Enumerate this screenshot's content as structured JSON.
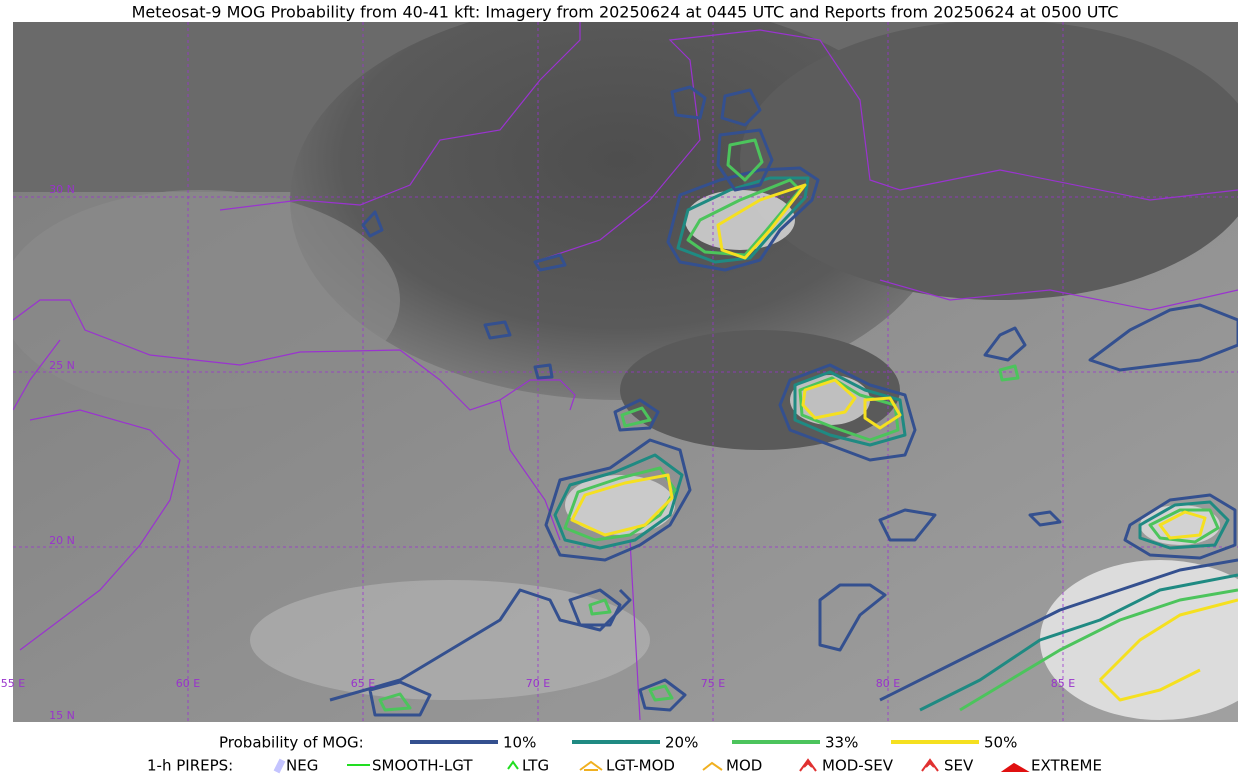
{
  "title": "Meteosat-9 MOG Probability from 40-41 kft: Imagery from 20250624 at 0445 UTC and Reports from 20250624 at 0500 UTC",
  "grid_labels": {
    "latitudes": [
      "30 N",
      "25 N",
      "20 N",
      "15 N"
    ],
    "longitudes": [
      "55 E",
      "60 E",
      "65 E",
      "70 E",
      "75 E",
      "80 E",
      "85 E"
    ]
  },
  "legend": {
    "probability": {
      "label": "Probability of MOG:",
      "items": [
        {
          "label": "10%",
          "color": "#34508f"
        },
        {
          "label": "20%",
          "color": "#1f8a82"
        },
        {
          "label": "33%",
          "color": "#4cc45c"
        },
        {
          "label": "50%",
          "color": "#f5e020"
        }
      ]
    },
    "pireps": {
      "label": "1-h PIREPS:",
      "items": [
        {
          "label": "NEG",
          "color": "#c4c4ff"
        },
        {
          "label": "SMOOTH-LGT",
          "color": "#22dd22"
        },
        {
          "label": "LTG",
          "color": "#22dd22"
        },
        {
          "label": "LGT-MOD",
          "color": "#f0b020"
        },
        {
          "label": "MOD",
          "color": "#f0b020"
        },
        {
          "label": "MOD-SEV",
          "color": "#e03030"
        },
        {
          "label": "SEV",
          "color": "#e03030"
        },
        {
          "label": "EXTREME",
          "color": "#e01010"
        }
      ]
    }
  }
}
